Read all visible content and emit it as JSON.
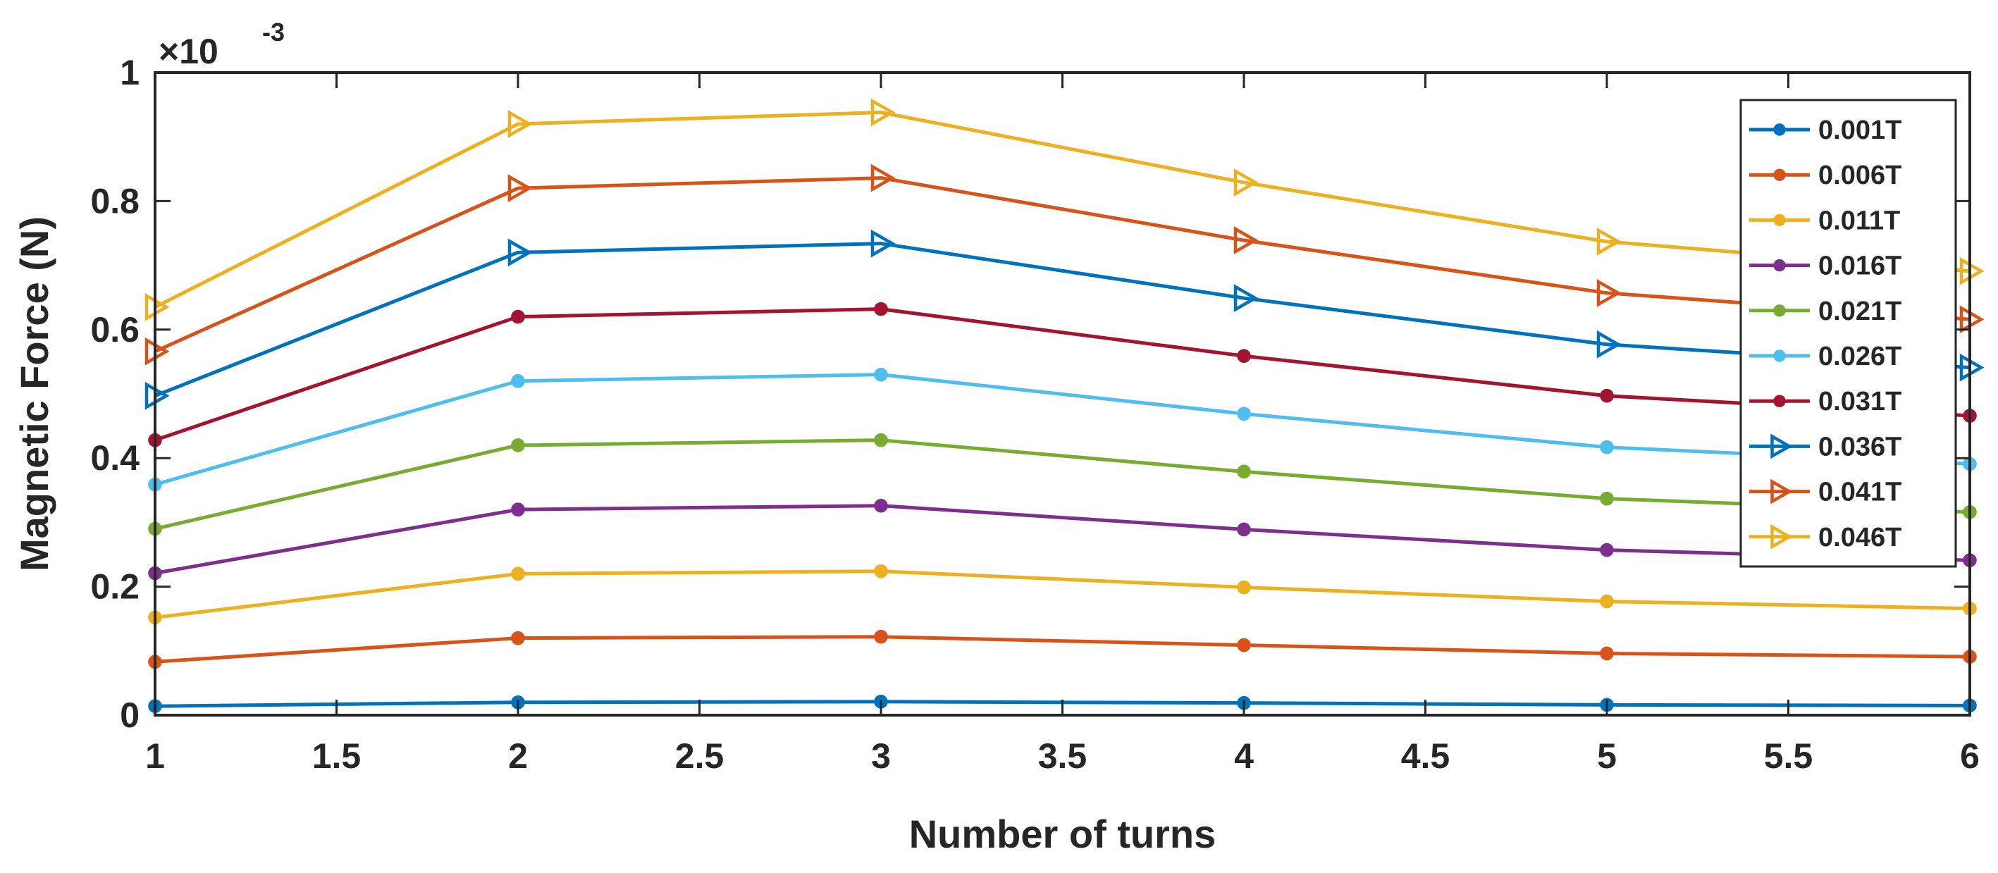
{
  "chart_data": {
    "type": "line",
    "title": "",
    "xlabel": "Number of turns",
    "ylabel": "Magnetic Force (N)",
    "y_exponent_label": "×10",
    "y_exponent_power": "-3",
    "xlim": [
      1,
      6
    ],
    "ylim": [
      0,
      1
    ],
    "xticks": [
      "1",
      "1.5",
      "2",
      "2.5",
      "3",
      "3.5",
      "4",
      "4.5",
      "5",
      "5.5",
      "6"
    ],
    "yticks": [
      "0",
      "0.2",
      "0.4",
      "0.6",
      "0.8",
      "1"
    ],
    "x": [
      1,
      2,
      3,
      4,
      5,
      6
    ],
    "grid": false,
    "legend_position": "top-right",
    "series": [
      {
        "name": "0.001T",
        "marker": "circle",
        "color": "#0072BD",
        "values": [
          0.014,
          0.02,
          0.021,
          0.019,
          0.016,
          0.015
        ]
      },
      {
        "name": "0.006T",
        "marker": "circle",
        "color": "#D95319",
        "values": [
          0.083,
          0.12,
          0.122,
          0.109,
          0.096,
          0.091
        ]
      },
      {
        "name": "0.011T",
        "marker": "circle",
        "color": "#EDB120",
        "values": [
          0.152,
          0.22,
          0.224,
          0.199,
          0.177,
          0.166
        ]
      },
      {
        "name": "0.016T",
        "marker": "circle",
        "color": "#7E2F8E",
        "values": [
          0.221,
          0.32,
          0.326,
          0.289,
          0.257,
          0.241
        ]
      },
      {
        "name": "0.021T",
        "marker": "circle",
        "color": "#77AC30",
        "values": [
          0.29,
          0.42,
          0.428,
          0.379,
          0.337,
          0.316
        ]
      },
      {
        "name": "0.026T",
        "marker": "circle",
        "color": "#4DBEEE",
        "values": [
          0.359,
          0.52,
          0.53,
          0.469,
          0.417,
          0.391
        ]
      },
      {
        "name": "0.031T",
        "marker": "circle",
        "color": "#A2142F",
        "values": [
          0.428,
          0.62,
          0.632,
          0.559,
          0.497,
          0.466
        ]
      },
      {
        "name": "0.036T",
        "marker": "triangle",
        "color": "#0072BD",
        "values": [
          0.497,
          0.72,
          0.734,
          0.649,
          0.577,
          0.541
        ]
      },
      {
        "name": "0.041T",
        "marker": "triangle",
        "color": "#D95319",
        "values": [
          0.566,
          0.82,
          0.836,
          0.739,
          0.657,
          0.616
        ]
      },
      {
        "name": "0.046T",
        "marker": "triangle",
        "color": "#EDB120",
        "values": [
          0.635,
          0.92,
          0.938,
          0.829,
          0.737,
          0.691
        ]
      }
    ]
  }
}
